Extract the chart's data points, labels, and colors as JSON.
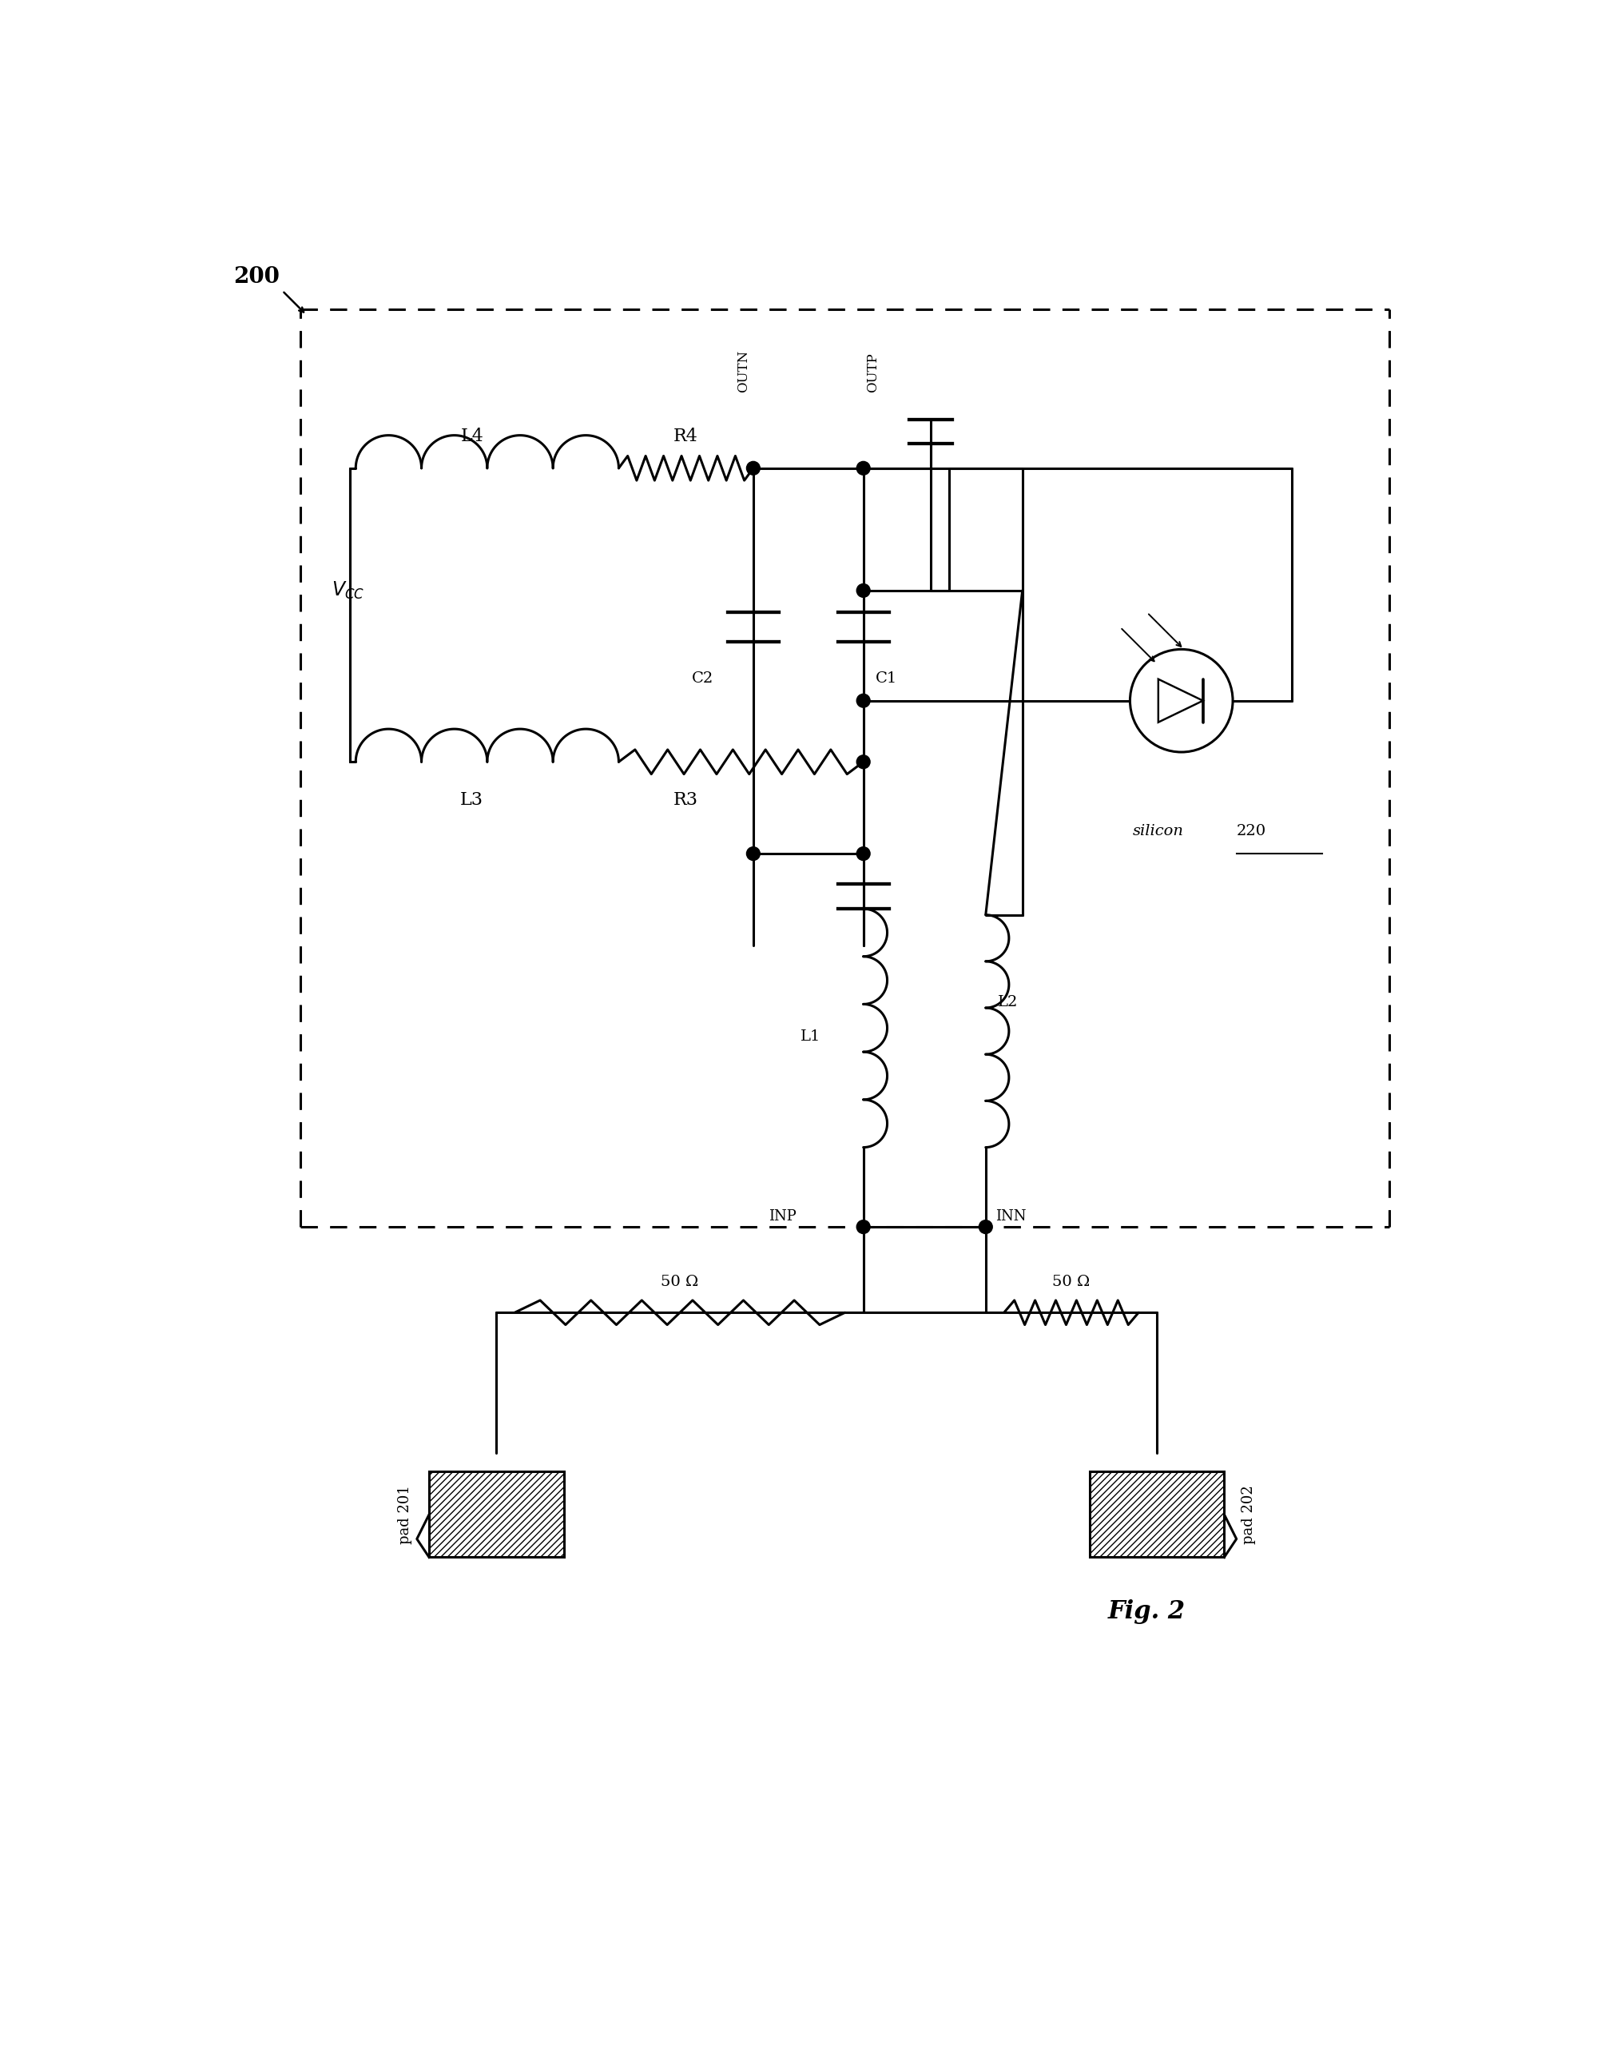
{
  "fig_width": 20.19,
  "fig_height": 25.85,
  "bg_color": "#ffffff",
  "line_color": "#000000",
  "lw": 2.2,
  "lw_thick": 2.8,
  "labels": {
    "200": "200",
    "vcc": "$V_{CC}$",
    "silicon": "silicon",
    "silicon_num": "220",
    "fig": "Fig. 2",
    "outn": "OUTN",
    "outp": "OUTP",
    "inp": "INP",
    "inn": "INN",
    "l1": "L1",
    "l2": "L2",
    "l3": "L3",
    "l4": "L4",
    "r3": "R3",
    "r4": "R4",
    "c1": "C1",
    "c2": "C2",
    "pad201": "pad 201",
    "pad202": "pad 202",
    "ohm_l": "50 Ω",
    "ohm_r": "50 Ω"
  }
}
